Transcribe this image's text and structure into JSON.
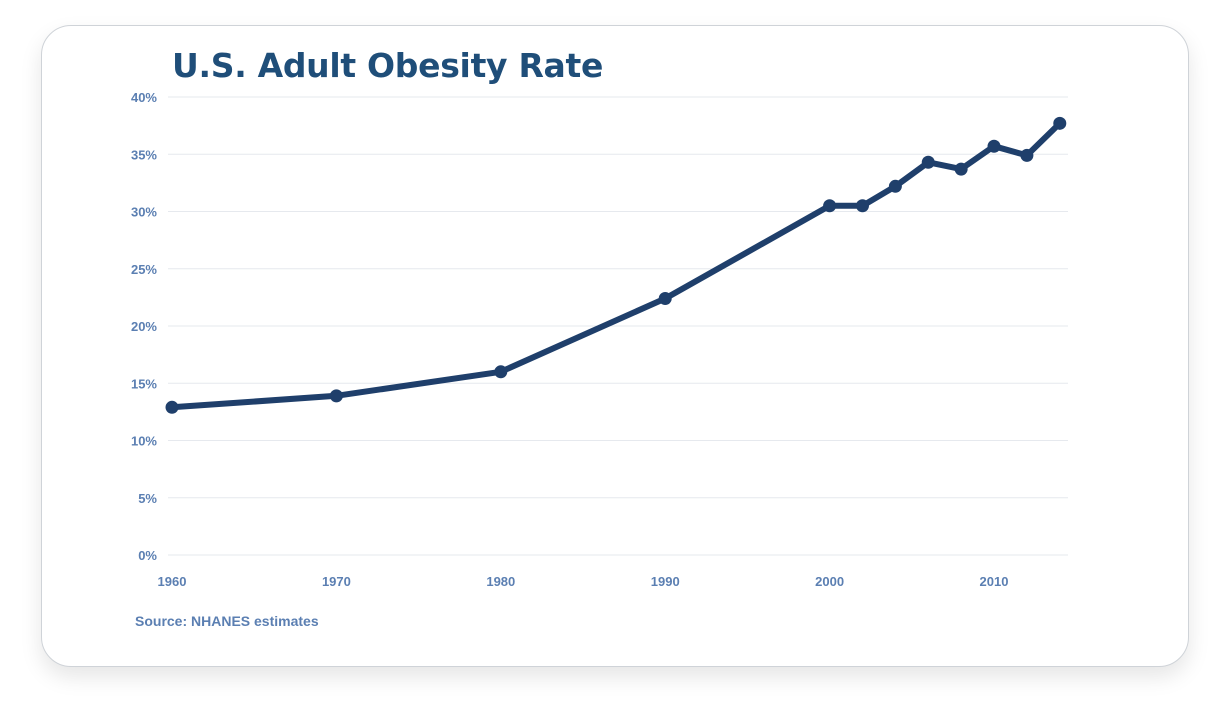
{
  "chart_data": {
    "type": "line",
    "title": "U.S. Adult Obesity Rate",
    "xlabel": "",
    "ylabel": "",
    "source": "Source: NHANES estimates",
    "x_ticks": [
      1960,
      1970,
      1980,
      1990,
      2000,
      2010
    ],
    "x_tick_labels": [
      "1960",
      "1970",
      "1980",
      "1990",
      "2000",
      "2010"
    ],
    "y_ticks": [
      0,
      5,
      10,
      15,
      20,
      25,
      30,
      35,
      40
    ],
    "y_tick_labels": [
      "0%",
      "5%",
      "10%",
      "15%",
      "20%",
      "25%",
      "30%",
      "35%",
      "40%"
    ],
    "xlim": [
      1960,
      2014
    ],
    "ylim": [
      0,
      40
    ],
    "grid": true,
    "legend": "none",
    "series": [
      {
        "color": "#1f3f6b",
        "points": [
          {
            "x": 1960,
            "y": 12.9
          },
          {
            "x": 1970,
            "y": 13.9
          },
          {
            "x": 1980,
            "y": 16.0
          },
          {
            "x": 1990,
            "y": 22.4
          },
          {
            "x": 2000,
            "y": 30.5
          },
          {
            "x": 2002,
            "y": 30.5
          },
          {
            "x": 2004,
            "y": 32.2
          },
          {
            "x": 2006,
            "y": 34.3
          },
          {
            "x": 2008,
            "y": 33.7
          },
          {
            "x": 2010,
            "y": 35.7
          },
          {
            "x": 2012,
            "y": 34.9
          },
          {
            "x": 2014,
            "y": 37.7
          }
        ]
      }
    ]
  }
}
